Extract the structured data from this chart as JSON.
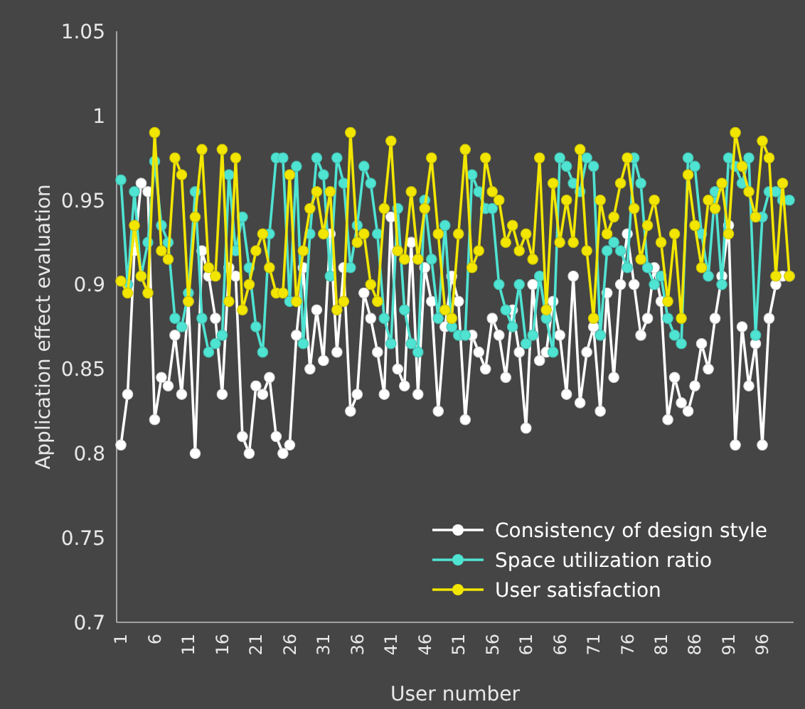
{
  "chart_data": {
    "type": "line",
    "xlabel": "User number",
    "ylabel": "Application effect evaluation",
    "categories": [
      "1",
      null,
      null,
      null,
      null,
      "6",
      null,
      null,
      null,
      null,
      "11",
      null,
      null,
      null,
      null,
      "16",
      null,
      null,
      null,
      null,
      "21",
      null,
      null,
      null,
      null,
      "26",
      null,
      null,
      null,
      null,
      "31",
      null,
      null,
      null,
      null,
      "36",
      null,
      null,
      null,
      null,
      "41",
      null,
      null,
      null,
      null,
      "46",
      null,
      null,
      null,
      null,
      "51",
      null,
      null,
      null,
      null,
      "56",
      null,
      null,
      null,
      null,
      "61",
      null,
      null,
      null,
      null,
      "66",
      null,
      null,
      null,
      null,
      "71",
      null,
      null,
      null,
      null,
      "76",
      null,
      null,
      null,
      null,
      "81",
      null,
      null,
      null,
      null,
      "86",
      null,
      null,
      null,
      null,
      "91",
      null,
      null,
      null,
      null,
      "96",
      null,
      null,
      null,
      null
    ],
    "series": [
      {
        "name": "Consistency of design style",
        "color": "#ffffff",
        "values": [
          0.805,
          0.835,
          0.92,
          0.96,
          0.955,
          0.82,
          0.845,
          0.84,
          0.87,
          0.835,
          0.89,
          0.8,
          0.92,
          0.905,
          0.88,
          0.835,
          0.91,
          0.905,
          0.81,
          0.8,
          0.84,
          0.835,
          0.845,
          0.81,
          0.8,
          0.805,
          0.87,
          0.91,
          0.85,
          0.885,
          0.855,
          0.93,
          0.86,
          0.91,
          0.825,
          0.835,
          0.895,
          0.88,
          0.86,
          0.835,
          0.94,
          0.85,
          0.84,
          0.925,
          0.835,
          0.91,
          0.89,
          0.825,
          0.875,
          0.905,
          0.89,
          0.82,
          0.87,
          0.86,
          0.85,
          0.88,
          0.87,
          0.845,
          0.885,
          0.86,
          0.815,
          0.9,
          0.855,
          0.86,
          0.89,
          0.87,
          0.835,
          0.905,
          0.83,
          0.86,
          0.875,
          0.825,
          0.895,
          0.845,
          0.9,
          0.93,
          0.9,
          0.87,
          0.88,
          0.91,
          0.89,
          0.82,
          0.845,
          0.83,
          0.825,
          0.84,
          0.865,
          0.85,
          0.88,
          0.905,
          0.935,
          0.805,
          0.875,
          0.84,
          0.865,
          0.805,
          0.88,
          0.9,
          0.905,
          0.905
        ]
      },
      {
        "name": "Space utilization ratio",
        "color": "#4fe3d2",
        "values": [
          0.962,
          0.9,
          0.955,
          0.905,
          0.925,
          0.973,
          0.935,
          0.925,
          0.88,
          0.875,
          0.895,
          0.955,
          0.88,
          0.86,
          0.865,
          0.87,
          0.965,
          0.92,
          0.94,
          0.91,
          0.875,
          0.86,
          0.93,
          0.975,
          0.975,
          0.89,
          0.97,
          0.865,
          0.93,
          0.975,
          0.965,
          0.905,
          0.975,
          0.96,
          0.91,
          0.935,
          0.97,
          0.96,
          0.93,
          0.88,
          0.865,
          0.945,
          0.885,
          0.865,
          0.86,
          0.95,
          0.915,
          0.88,
          0.935,
          0.875,
          0.87,
          0.87,
          0.965,
          0.955,
          0.945,
          0.945,
          0.9,
          0.885,
          0.875,
          0.9,
          0.865,
          0.87,
          0.905,
          0.88,
          0.86,
          0.975,
          0.97,
          0.96,
          0.955,
          0.975,
          0.97,
          0.87,
          0.92,
          0.925,
          0.92,
          0.91,
          0.975,
          0.96,
          0.91,
          0.9,
          0.905,
          0.88,
          0.87,
          0.865,
          0.975,
          0.97,
          0.93,
          0.905,
          0.955,
          0.9,
          0.975,
          0.97,
          0.96,
          0.975,
          0.87,
          0.94,
          0.955,
          0.955,
          0.95,
          0.95
        ]
      },
      {
        "name": "User satisfaction",
        "color": "#f2e600",
        "values": [
          0.902,
          0.895,
          0.935,
          0.905,
          0.895,
          0.99,
          0.92,
          0.915,
          0.975,
          0.965,
          0.89,
          0.94,
          0.98,
          0.91,
          0.905,
          0.98,
          0.89,
          0.975,
          0.885,
          0.9,
          0.92,
          0.93,
          0.91,
          0.895,
          0.895,
          0.965,
          0.89,
          0.92,
          0.945,
          0.955,
          0.93,
          0.955,
          0.885,
          0.89,
          0.99,
          0.925,
          0.93,
          0.9,
          0.89,
          0.945,
          0.985,
          0.92,
          0.915,
          0.955,
          0.915,
          0.945,
          0.975,
          0.93,
          0.885,
          0.88,
          0.93,
          0.98,
          0.91,
          0.92,
          0.975,
          0.955,
          0.95,
          0.925,
          0.935,
          0.92,
          0.93,
          0.915,
          0.975,
          0.885,
          0.96,
          0.925,
          0.95,
          0.925,
          0.98,
          0.92,
          0.88,
          0.95,
          0.93,
          0.94,
          0.96,
          0.975,
          0.945,
          0.915,
          0.935,
          0.95,
          0.925,
          0.89,
          0.93,
          0.88,
          0.965,
          0.935,
          0.91,
          0.95,
          0.945,
          0.96,
          0.93,
          0.99,
          0.97,
          0.955,
          0.94,
          0.985,
          0.975,
          0.905,
          0.96,
          0.905
        ]
      }
    ],
    "ylim": [
      0.7,
      1.05
    ],
    "yticks": [
      0.7,
      0.75,
      0.8,
      0.85,
      0.9,
      0.95,
      1,
      1.05
    ],
    "grid": false,
    "legend": "bottom right",
    "marker": "circle",
    "line_style": "solid"
  }
}
